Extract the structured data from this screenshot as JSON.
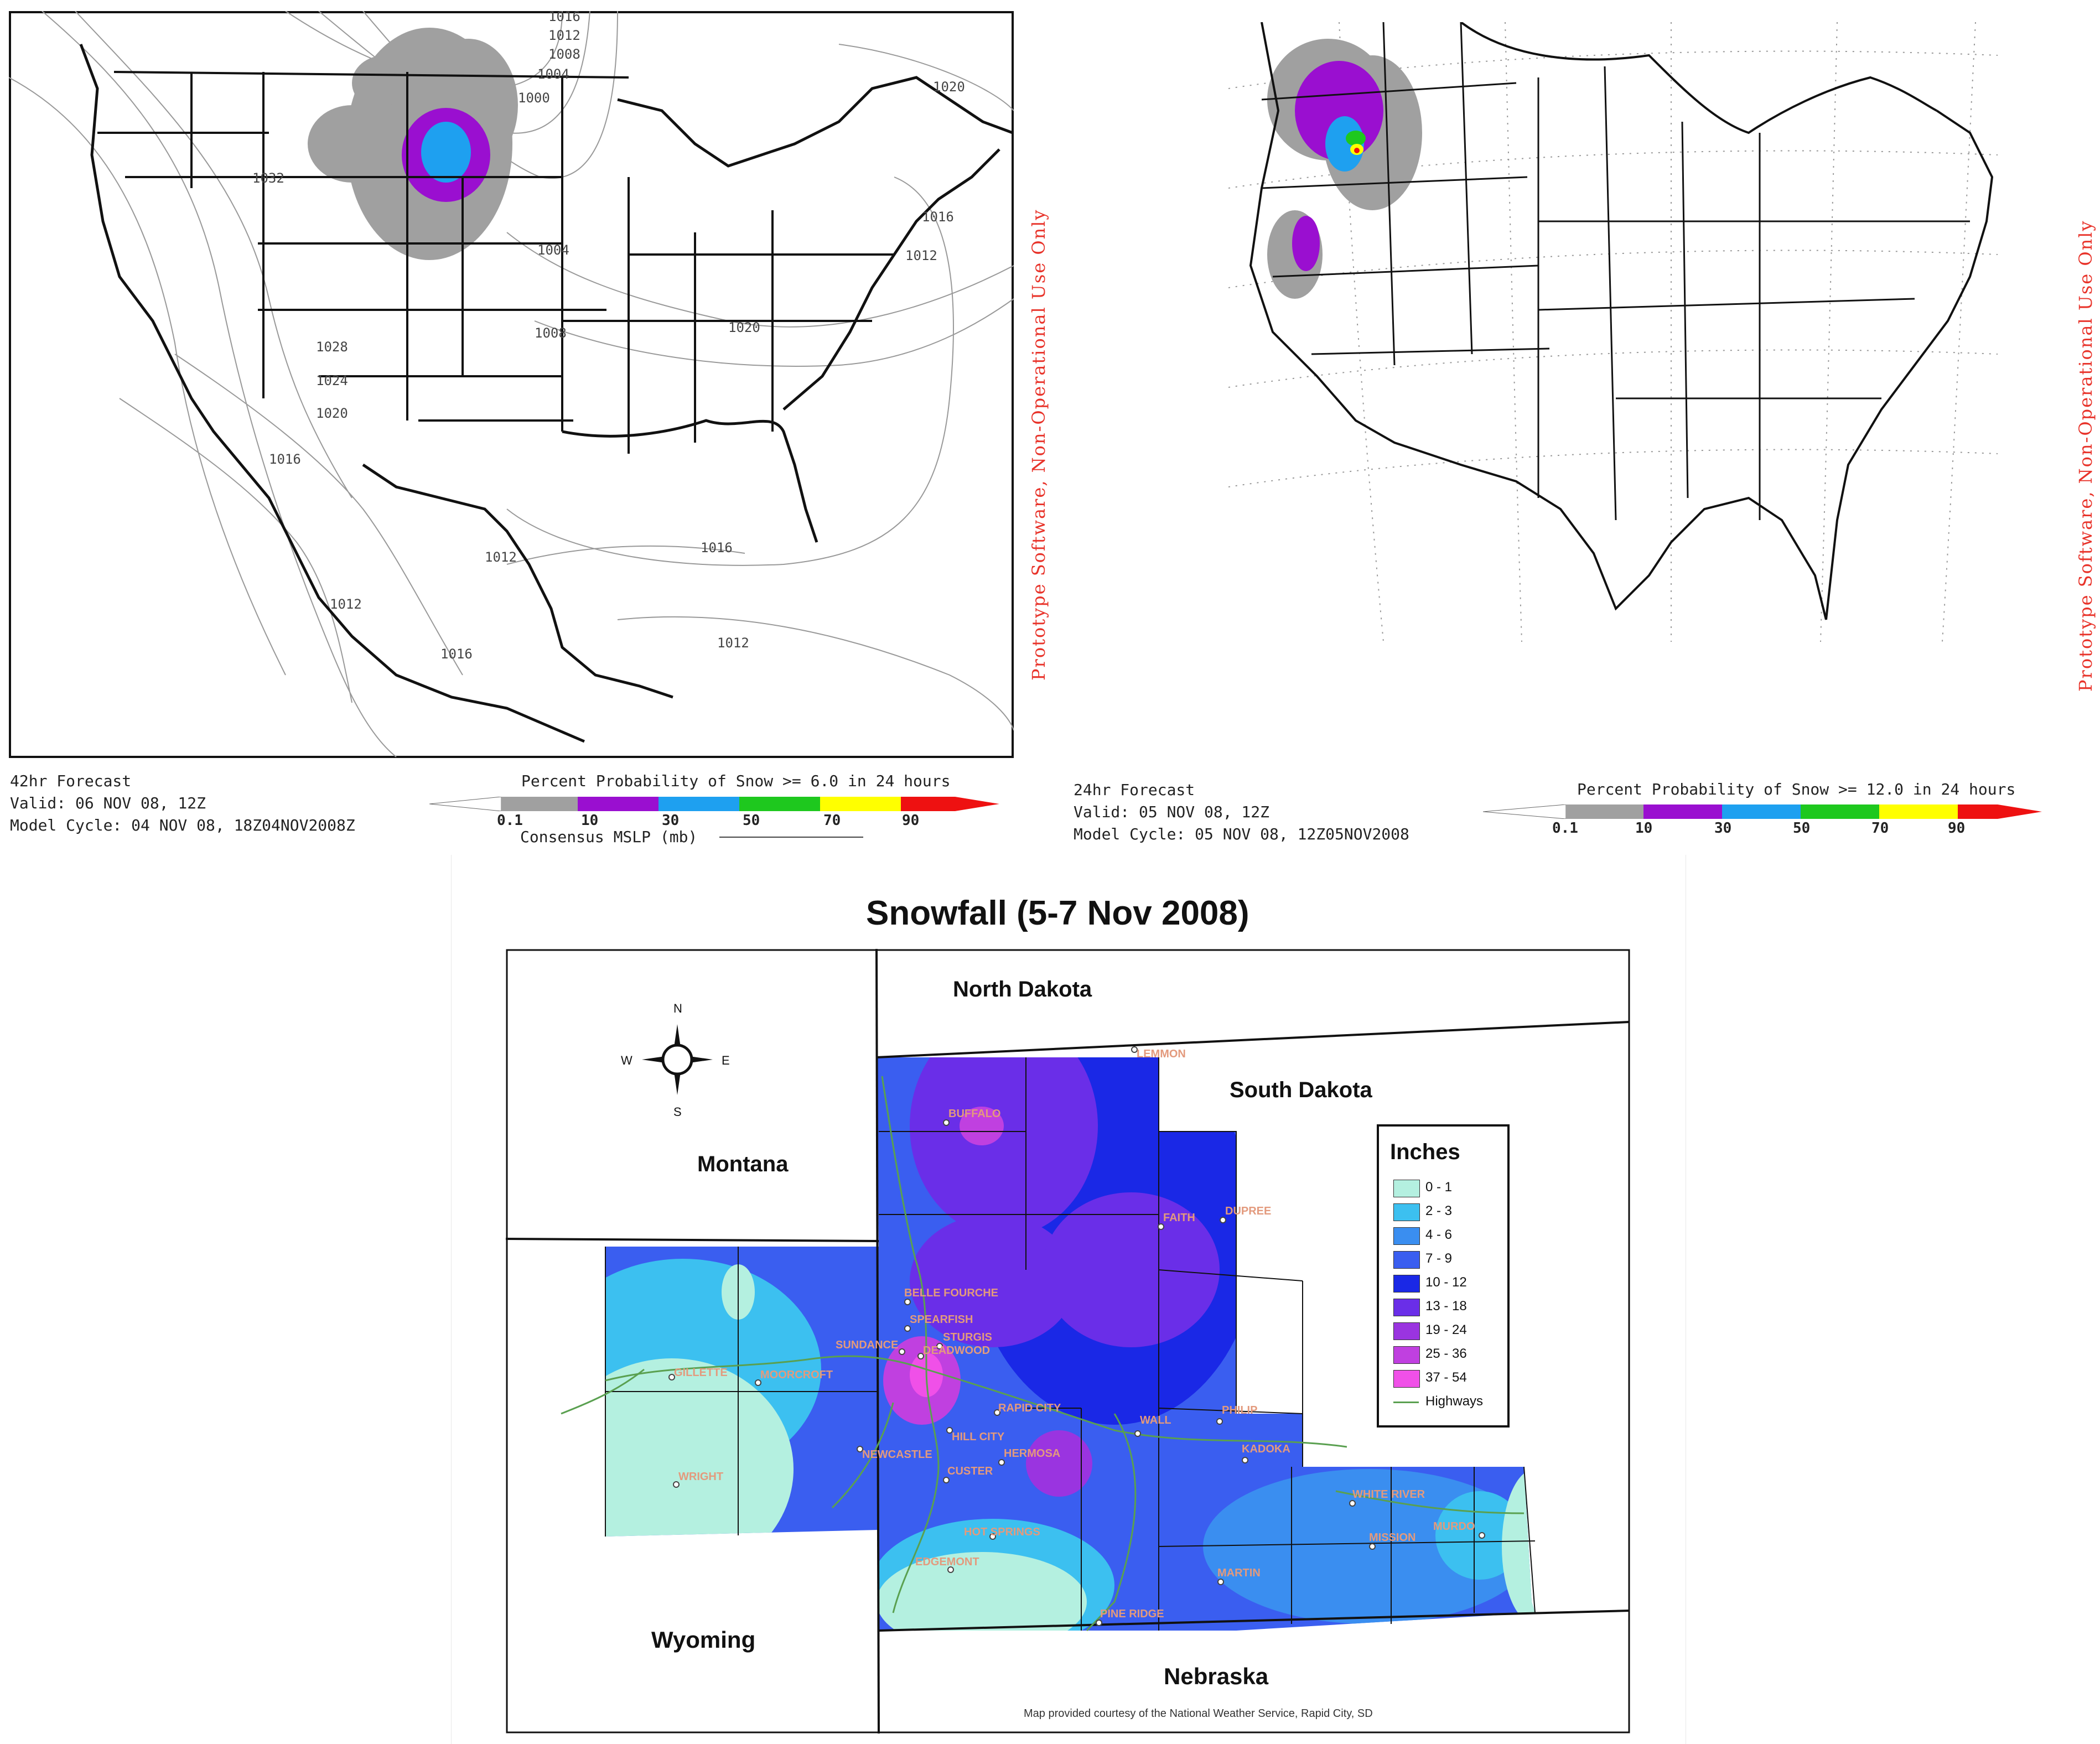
{
  "panel1": {
    "watermark": "Prototype Software, Non-Operational Use Only",
    "forecast": "42hr Forecast",
    "valid": "Valid: 06 NOV 08, 12Z",
    "model_cycle": "Model Cycle: 04 NOV 08, 18Z04NOV2008Z",
    "legend_title": "Percent Probability of Snow >= 6.0 in 24 hours",
    "legend_ticks": [
      "0.1",
      "10",
      "30",
      "50",
      "70",
      "90"
    ],
    "mslp_label": "Consensus MSLP (mb)",
    "isobar_labels": [
      "1016",
      "1012",
      "1008",
      "1004",
      "1000",
      "1020",
      "1032",
      "1016",
      "1012",
      "1004",
      "1008",
      "1020",
      "1028",
      "1024",
      "1020",
      "1016",
      "1012",
      "1016",
      "1012",
      "1016",
      "1012"
    ]
  },
  "panel2": {
    "watermark": "Prototype Software, Non-Operational Use Only",
    "forecast": "24hr Forecast",
    "valid": "Valid: 05 NOV 08, 12Z",
    "model_cycle": "Model Cycle: 05 NOV 08, 12Z05NOV2008",
    "legend_title": "Percent Probability of Snow >= 12.0 in 24 hours",
    "legend_ticks": [
      "0.1",
      "10",
      "30",
      "50",
      "70",
      "90"
    ]
  },
  "probability_colors": [
    "#a0a0a0",
    "#9a0fd0",
    "#1ea0f0",
    "#1ec81e",
    "#ffff00",
    "#ee1111"
  ],
  "snowfall": {
    "title": "Snowfall (5-7 Nov 2008)",
    "states": {
      "north_dakota": "North Dakota",
      "south_dakota": "South Dakota",
      "montana": "Montana",
      "wyoming": "Wyoming",
      "nebraska": "Nebraska"
    },
    "compass": {
      "n": "N",
      "s": "S",
      "e": "E",
      "w": "W"
    },
    "cities": [
      "LEMMON",
      "BUFFALO",
      "FAITH",
      "DUPREE",
      "BELLE FOURCHE",
      "SPEARFISH",
      "STURGIS",
      "SUNDANCE",
      "DEADWOOD",
      "GILLETTE",
      "MOORCROFT",
      "RAPID CITY",
      "WALL",
      "PHILIP",
      "HILL CITY",
      "NEWCASTLE",
      "HERMOSA",
      "KADOKA",
      "CUSTER",
      "WRIGHT",
      "WHITE RIVER",
      "MURDO",
      "MISSION",
      "HOT SPRINGS",
      "EDGEMONT",
      "MARTIN",
      "PINE RIDGE"
    ],
    "legend": {
      "title": "Inches",
      "items": [
        {
          "label": "0 - 1",
          "color": "#b4f0e0"
        },
        {
          "label": "2 - 3",
          "color": "#3cc0f0"
        },
        {
          "label": "4 - 6",
          "color": "#3a8ef0"
        },
        {
          "label": "7 - 9",
          "color": "#3a5ef0"
        },
        {
          "label": "10 - 12",
          "color": "#1a28e6"
        },
        {
          "label": "13 - 18",
          "color": "#6a2ee8"
        },
        {
          "label": "19 - 24",
          "color": "#9a34e0"
        },
        {
          "label": "25 - 36",
          "color": "#c040e0"
        },
        {
          "label": "37 - 54",
          "color": "#f050e8"
        }
      ],
      "highways_label": "Highways",
      "highway_color": "#5aa050"
    },
    "credit": "Map provided courtesy of the National Weather Service, Rapid City, SD"
  }
}
